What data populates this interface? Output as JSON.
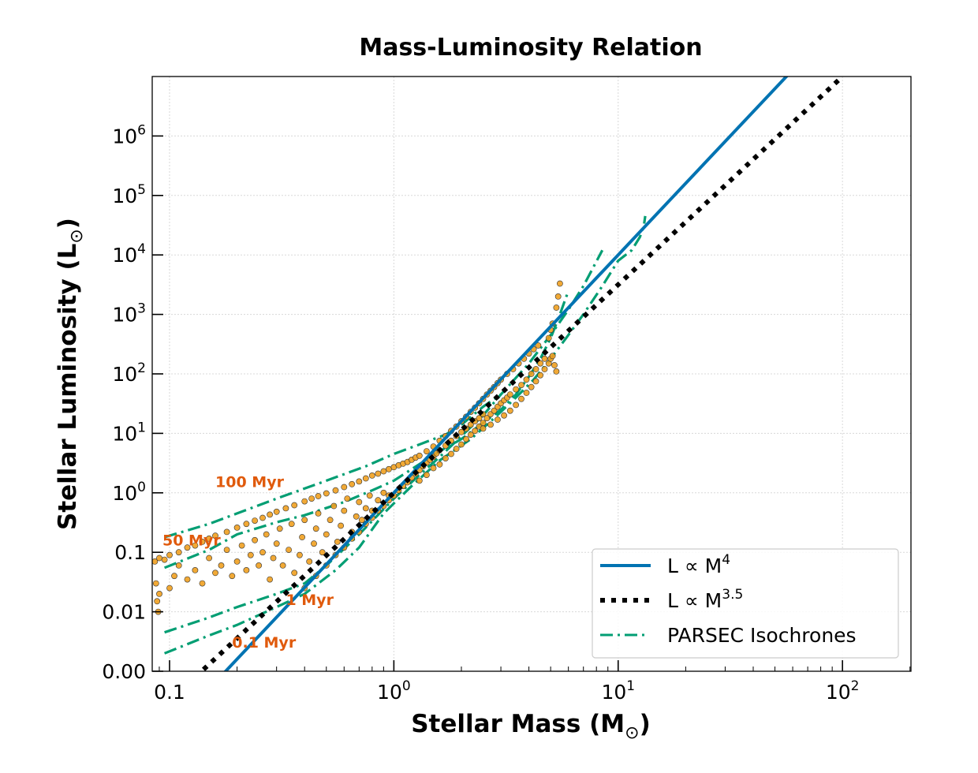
{
  "chart_data": {
    "type": "scatter",
    "title": "Mass-Luminosity Relation",
    "xlabel": "Stellar Mass (M⊙)",
    "ylabel": "Stellar Luminosity (L⊙)",
    "xlabel_parts": {
      "main": "Stellar Mass (M",
      "sub": "⊙",
      "end": ")"
    },
    "ylabel_parts": {
      "main": "Stellar Luminosity (L",
      "sub": "⊙",
      "end": ")"
    },
    "xscale": "log",
    "yscale": "log",
    "xlim": [
      0.0837,
      202
    ],
    "ylim": [
      0.001,
      10000000
    ],
    "grid": true,
    "x_ticks": [
      {
        "value": 0.1,
        "base": "0.1",
        "exp": ""
      },
      {
        "value": 1,
        "base": "10",
        "exp": "0"
      },
      {
        "value": 10,
        "base": "10",
        "exp": "1"
      },
      {
        "value": 100,
        "base": "10",
        "exp": "2"
      }
    ],
    "y_ticks": [
      {
        "value": 0.001,
        "base": "0.00",
        "exp": ""
      },
      {
        "value": 0.01,
        "base": "0.01",
        "exp": ""
      },
      {
        "value": 0.1,
        "base": "0.1",
        "exp": ""
      },
      {
        "value": 1,
        "base": "10",
        "exp": "0"
      },
      {
        "value": 10,
        "base": "10",
        "exp": "1"
      },
      {
        "value": 100,
        "base": "10",
        "exp": "2"
      },
      {
        "value": 1000,
        "base": "10",
        "exp": "3"
      },
      {
        "value": 10000,
        "base": "10",
        "exp": "4"
      },
      {
        "value": 100000,
        "base": "10",
        "exp": "5"
      },
      {
        "value": 1000000,
        "base": "10",
        "exp": "6"
      }
    ],
    "colors": {
      "power4": "#0173b2",
      "power35": "#000000",
      "isochrone": "#029e73",
      "scatter_fill": "#f0a020",
      "scatter_edge": "#333333",
      "annotation": "#e05a0c",
      "grid": "#d8d8d8"
    },
    "legend": {
      "placement": "lower-right",
      "entries": [
        {
          "label": "L ∝ M",
          "sup": "4",
          "style": "solid",
          "series": "power4"
        },
        {
          "label": "L ∝ M",
          "sup": "3.5",
          "style": "dotted",
          "series": "power35"
        },
        {
          "label": "PARSEC Isochrones",
          "sup": "",
          "style": "dashdot",
          "series": "isochrone"
        }
      ]
    },
    "power_laws": [
      {
        "name": "L ∝ M^4",
        "exponent": 4,
        "coefficient": 1,
        "x_range": [
          0.0837,
          202
        ]
      },
      {
        "name": "L ∝ M^3.5",
        "exponent": 3.5,
        "coefficient": 1,
        "x_range": [
          0.12,
          100
        ]
      }
    ],
    "isochrones": [
      {
        "name": "100 Myr",
        "points": [
          [
            0.095,
            0.18
          ],
          [
            0.15,
            0.3
          ],
          [
            0.2,
            0.45
          ],
          [
            0.3,
            0.8
          ],
          [
            0.5,
            1.6
          ],
          [
            0.75,
            2.8
          ],
          [
            1.0,
            4.5
          ],
          [
            1.3,
            6.5
          ],
          [
            1.5,
            8
          ],
          [
            1.7,
            9.5
          ],
          [
            2.0,
            14
          ],
          [
            2.5,
            28
          ],
          [
            3.0,
            45
          ]
        ]
      },
      {
        "name": "50 Myr",
        "points": [
          [
            0.095,
            0.055
          ],
          [
            0.15,
            0.11
          ],
          [
            0.2,
            0.2
          ],
          [
            0.3,
            0.32
          ],
          [
            0.4,
            0.42
          ],
          [
            0.6,
            0.7
          ],
          [
            0.8,
            1.1
          ],
          [
            1.0,
            1.6
          ],
          [
            1.2,
            2.5
          ],
          [
            1.6,
            5
          ],
          [
            2.0,
            8
          ],
          [
            2.5,
            15
          ],
          [
            3.0,
            25
          ],
          [
            3.5,
            45
          ],
          [
            4.0,
            90
          ],
          [
            4.5,
            180
          ],
          [
            5.0,
            400
          ],
          [
            5.5,
            1000
          ],
          [
            6.0,
            2500
          ]
        ]
      },
      {
        "name": "1 Myr",
        "points": [
          [
            0.095,
            0.0045
          ],
          [
            0.15,
            0.008
          ],
          [
            0.2,
            0.012
          ],
          [
            0.3,
            0.02
          ],
          [
            0.4,
            0.03
          ],
          [
            0.5,
            0.06
          ],
          [
            0.7,
            0.2
          ],
          [
            1.0,
            0.8
          ],
          [
            1.3,
            2.0
          ],
          [
            1.6,
            4
          ],
          [
            2.0,
            9
          ],
          [
            2.5,
            20
          ],
          [
            3.0,
            45
          ],
          [
            4.0,
            150
          ],
          [
            5.0,
            450
          ],
          [
            6.0,
            1200
          ],
          [
            7.0,
            3000
          ],
          [
            8.5,
            12000
          ]
        ]
      },
      {
        "name": "0.1 Myr",
        "points": [
          [
            0.095,
            0.002
          ],
          [
            0.15,
            0.004
          ],
          [
            0.2,
            0.006
          ],
          [
            0.3,
            0.012
          ],
          [
            0.4,
            0.02
          ],
          [
            0.55,
            0.05
          ],
          [
            0.7,
            0.12
          ],
          [
            0.9,
            0.45
          ],
          [
            1.2,
            1.3
          ],
          [
            1.6,
            3.5
          ],
          [
            2.2,
            8
          ],
          [
            2.8,
            18
          ],
          [
            3.5,
            40
          ],
          [
            4.2,
            80
          ],
          [
            5.0,
            180
          ],
          [
            6.0,
            450
          ],
          [
            7.0,
            1000
          ],
          [
            8.5,
            3000
          ],
          [
            10,
            8000
          ],
          [
            11.5,
            12000
          ],
          [
            12.5,
            20000
          ],
          [
            13,
            30000
          ],
          [
            13.2,
            45000
          ]
        ]
      }
    ],
    "annotations": [
      {
        "text": "100 Myr",
        "x": 0.16,
        "y": 1.25
      },
      {
        "text": "50 Myr",
        "x": 0.093,
        "y": 0.13
      },
      {
        "text": "1 Myr",
        "x": 0.33,
        "y": 0.013
      },
      {
        "text": "0.1 Myr",
        "x": 0.19,
        "y": 0.0025
      }
    ],
    "scatter_points": [
      [
        0.086,
        0.07
      ],
      [
        0.09,
        0.08
      ],
      [
        0.095,
        0.075
      ],
      [
        0.1,
        0.09
      ],
      [
        0.11,
        0.1
      ],
      [
        0.12,
        0.12
      ],
      [
        0.13,
        0.13
      ],
      [
        0.14,
        0.15
      ],
      [
        0.15,
        0.17
      ],
      [
        0.16,
        0.19
      ],
      [
        0.18,
        0.22
      ],
      [
        0.2,
        0.26
      ],
      [
        0.22,
        0.3
      ],
      [
        0.24,
        0.34
      ],
      [
        0.26,
        0.38
      ],
      [
        0.28,
        0.43
      ],
      [
        0.3,
        0.48
      ],
      [
        0.33,
        0.55
      ],
      [
        0.36,
        0.62
      ],
      [
        0.4,
        0.72
      ],
      [
        0.43,
        0.8
      ],
      [
        0.46,
        0.88
      ],
      [
        0.5,
        0.98
      ],
      [
        0.55,
        1.1
      ],
      [
        0.6,
        1.25
      ],
      [
        0.65,
        1.4
      ],
      [
        0.7,
        1.55
      ],
      [
        0.75,
        1.75
      ],
      [
        0.8,
        1.95
      ],
      [
        0.85,
        2.1
      ],
      [
        0.9,
        2.3
      ],
      [
        0.95,
        2.5
      ],
      [
        1.0,
        2.7
      ],
      [
        1.05,
        2.9
      ],
      [
        1.1,
        3.1
      ],
      [
        1.15,
        3.3
      ],
      [
        1.2,
        3.6
      ],
      [
        1.25,
        3.9
      ],
      [
        1.3,
        4.2
      ],
      [
        0.087,
        0.03
      ],
      [
        0.088,
        0.015
      ],
      [
        0.089,
        0.01
      ],
      [
        0.09,
        0.02
      ],
      [
        0.1,
        0.025
      ],
      [
        0.105,
        0.04
      ],
      [
        0.11,
        0.06
      ],
      [
        0.12,
        0.035
      ],
      [
        0.13,
        0.05
      ],
      [
        0.14,
        0.03
      ],
      [
        0.15,
        0.08
      ],
      [
        0.16,
        0.045
      ],
      [
        0.17,
        0.06
      ],
      [
        0.18,
        0.11
      ],
      [
        0.19,
        0.04
      ],
      [
        0.2,
        0.07
      ],
      [
        0.21,
        0.13
      ],
      [
        0.22,
        0.05
      ],
      [
        0.23,
        0.09
      ],
      [
        0.24,
        0.16
      ],
      [
        0.25,
        0.06
      ],
      [
        0.26,
        0.1
      ],
      [
        0.27,
        0.2
      ],
      [
        0.28,
        0.035
      ],
      [
        0.29,
        0.08
      ],
      [
        0.3,
        0.14
      ],
      [
        0.31,
        0.25
      ],
      [
        0.32,
        0.06
      ],
      [
        0.34,
        0.11
      ],
      [
        0.35,
        0.3
      ],
      [
        0.36,
        0.045
      ],
      [
        0.38,
        0.09
      ],
      [
        0.39,
        0.18
      ],
      [
        0.4,
        0.35
      ],
      [
        0.42,
        0.07
      ],
      [
        0.44,
        0.14
      ],
      [
        0.45,
        0.25
      ],
      [
        0.46,
        0.45
      ],
      [
        0.48,
        0.1
      ],
      [
        0.5,
        0.2
      ],
      [
        0.52,
        0.35
      ],
      [
        0.54,
        0.6
      ],
      [
        0.56,
        0.15
      ],
      [
        0.58,
        0.28
      ],
      [
        0.6,
        0.5
      ],
      [
        0.62,
        0.8
      ],
      [
        0.65,
        0.22
      ],
      [
        0.68,
        0.4
      ],
      [
        0.7,
        0.7
      ],
      [
        0.72,
        0.35
      ],
      [
        0.75,
        0.55
      ],
      [
        0.78,
        0.9
      ],
      [
        0.8,
        0.5
      ],
      [
        0.85,
        0.75
      ],
      [
        0.9,
        1.0
      ],
      [
        0.95,
        0.9
      ],
      [
        0.4,
        0.025
      ],
      [
        0.45,
        0.04
      ],
      [
        0.5,
        0.06
      ],
      [
        0.55,
        0.09
      ],
      [
        0.6,
        0.12
      ],
      [
        0.65,
        0.17
      ],
      [
        0.7,
        0.22
      ],
      [
        0.75,
        0.3
      ],
      [
        0.8,
        0.38
      ],
      [
        0.85,
        0.5
      ],
      [
        0.9,
        0.6
      ],
      [
        0.95,
        0.75
      ],
      [
        1.0,
        0.9
      ],
      [
        1.05,
        1.1
      ],
      [
        1.1,
        1.3
      ],
      [
        1.15,
        1.5
      ],
      [
        1.2,
        1.8
      ],
      [
        1.25,
        2.1
      ],
      [
        1.3,
        2.4
      ],
      [
        1.35,
        2.8
      ],
      [
        1.4,
        3.2
      ],
      [
        1.45,
        3.6
      ],
      [
        1.5,
        4.0
      ],
      [
        1.55,
        4.6
      ],
      [
        1.6,
        5.2
      ],
      [
        1.7,
        6.2
      ],
      [
        1.8,
        7.5
      ],
      [
        1.9,
        9
      ],
      [
        2.0,
        10.5
      ],
      [
        2.1,
        12
      ],
      [
        2.2,
        14
      ],
      [
        2.3,
        16
      ],
      [
        2.4,
        18
      ],
      [
        2.5,
        21
      ],
      [
        1.3,
        1.6
      ],
      [
        1.4,
        2.0
      ],
      [
        1.5,
        2.6
      ],
      [
        1.6,
        3.0
      ],
      [
        1.7,
        3.8
      ],
      [
        1.8,
        4.5
      ],
      [
        1.9,
        5.5
      ],
      [
        2.0,
        6.5
      ],
      [
        2.1,
        8
      ],
      [
        2.2,
        9.5
      ],
      [
        2.3,
        11
      ],
      [
        2.4,
        13
      ],
      [
        2.5,
        15
      ],
      [
        2.6,
        18
      ],
      [
        2.7,
        21
      ],
      [
        2.8,
        24
      ],
      [
        2.9,
        28
      ],
      [
        3.0,
        32
      ],
      [
        3.1,
        36
      ],
      [
        3.2,
        40
      ],
      [
        3.3,
        45
      ],
      [
        3.5,
        55
      ],
      [
        3.7,
        65
      ],
      [
        3.9,
        80
      ],
      [
        4.1,
        100
      ],
      [
        4.3,
        120
      ],
      [
        4.5,
        150
      ],
      [
        4.7,
        180
      ],
      [
        1.4,
        5
      ],
      [
        1.5,
        6
      ],
      [
        1.6,
        7.5
      ],
      [
        1.7,
        9
      ],
      [
        1.8,
        11
      ],
      [
        1.9,
        13
      ],
      [
        2.0,
        16
      ],
      [
        2.1,
        19
      ],
      [
        2.2,
        23
      ],
      [
        2.3,
        27
      ],
      [
        2.4,
        32
      ],
      [
        2.5,
        38
      ],
      [
        2.6,
        45
      ],
      [
        2.7,
        52
      ],
      [
        2.8,
        60
      ],
      [
        2.9,
        70
      ],
      [
        3.0,
        80
      ],
      [
        3.2,
        100
      ],
      [
        3.4,
        120
      ],
      [
        3.6,
        150
      ],
      [
        3.8,
        180
      ],
      [
        4.0,
        220
      ],
      [
        4.2,
        260
      ],
      [
        4.4,
        300
      ],
      [
        2.5,
        12
      ],
      [
        2.7,
        14
      ],
      [
        2.9,
        17
      ],
      [
        3.1,
        20
      ],
      [
        3.3,
        24
      ],
      [
        3.5,
        30
      ],
      [
        3.7,
        38
      ],
      [
        3.9,
        48
      ],
      [
        4.1,
        60
      ],
      [
        4.3,
        75
      ],
      [
        4.5,
        95
      ],
      [
        4.7,
        120
      ],
      [
        4.9,
        150
      ],
      [
        5.0,
        180
      ],
      [
        5.1,
        200
      ],
      [
        5.2,
        140
      ],
      [
        5.3,
        110
      ],
      [
        4.9,
        400
      ],
      [
        5.0,
        550
      ],
      [
        5.1,
        700
      ],
      [
        5.3,
        1300
      ],
      [
        5.4,
        2000
      ],
      [
        5.5,
        3300
      ]
    ]
  }
}
